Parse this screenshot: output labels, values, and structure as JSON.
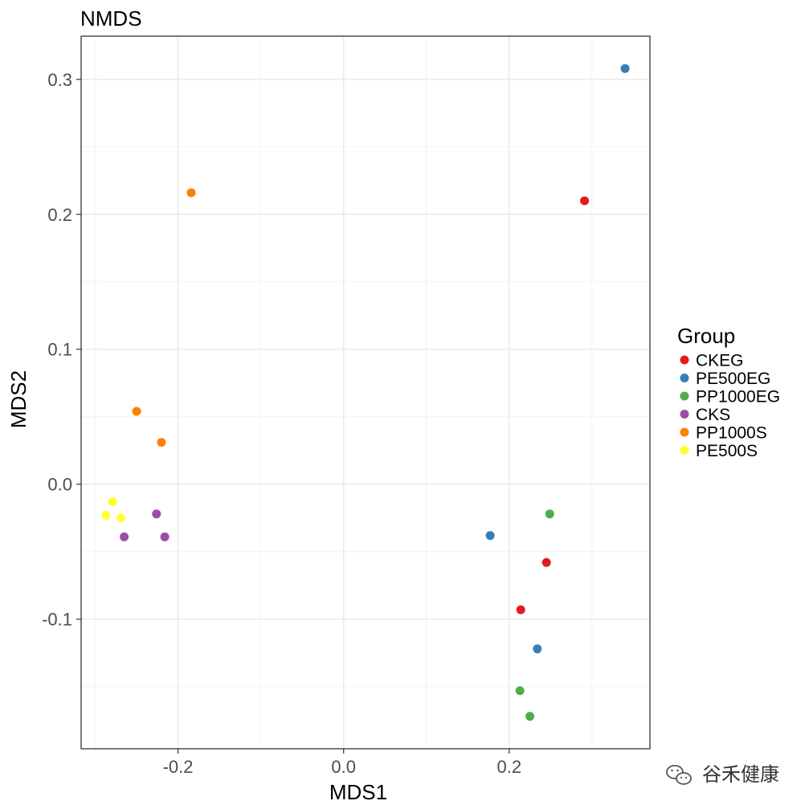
{
  "chart_data": {
    "type": "scatter",
    "title": "NMDS",
    "xlabel": "MDS1",
    "ylabel": "MDS2",
    "xlim": [
      -0.317,
      0.37
    ],
    "ylim": [
      -0.196,
      0.332
    ],
    "x_ticks": [
      -0.2,
      0.0,
      0.2
    ],
    "x_tick_labels": [
      "-0.2",
      "0.0",
      "0.2"
    ],
    "y_ticks": [
      -0.1,
      0.0,
      0.1,
      0.2,
      0.3
    ],
    "y_tick_labels": [
      "-0.1",
      "0.0",
      "0.1",
      "0.2",
      "0.3"
    ],
    "grid": true,
    "legend_title": "Group",
    "legend_position": "right",
    "series": [
      {
        "name": "CKEG",
        "color": "#E41A1C",
        "points": [
          [
            0.291,
            0.21
          ],
          [
            0.245,
            -0.058
          ],
          [
            0.214,
            -0.093
          ]
        ]
      },
      {
        "name": "PE500EG",
        "color": "#377EB8",
        "points": [
          [
            0.34,
            0.308
          ],
          [
            0.177,
            -0.038
          ],
          [
            0.234,
            -0.122
          ]
        ]
      },
      {
        "name": "PP1000EG",
        "color": "#4DAF4A",
        "points": [
          [
            0.249,
            -0.022
          ],
          [
            0.213,
            -0.153
          ],
          [
            0.225,
            -0.172
          ]
        ]
      },
      {
        "name": "CKS",
        "color": "#984EA3",
        "points": [
          [
            -0.226,
            -0.022
          ],
          [
            -0.265,
            -0.039
          ],
          [
            -0.216,
            -0.039
          ]
        ]
      },
      {
        "name": "PP1000S",
        "color": "#FF7F00",
        "points": [
          [
            -0.184,
            0.216
          ],
          [
            -0.25,
            0.054
          ],
          [
            -0.22,
            0.031
          ]
        ]
      },
      {
        "name": "PE500S",
        "color": "#FFFF33",
        "points": [
          [
            -0.279,
            -0.013
          ],
          [
            -0.287,
            -0.023
          ],
          [
            -0.269,
            -0.025
          ]
        ]
      }
    ]
  },
  "watermark": {
    "text": "谷禾健康",
    "icon": "wechat-icon"
  }
}
